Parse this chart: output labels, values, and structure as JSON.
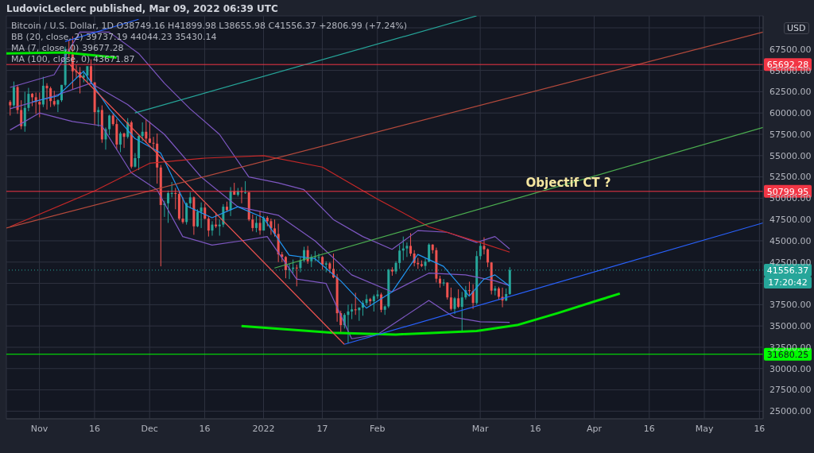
{
  "chart_data": {
    "type": "candlestick",
    "title": "LudovicLeclerc published, Mar 09, 2022 06:39 UTC",
    "subtitle": "Bitcoin / U.S. Dollar, 1D  O38749.16  H41899.98  L38655.98  C41556.37  +2806.99 (+7.24%)",
    "ylabel": "USD",
    "x": [
      "2021-10-24",
      "2021-10-25",
      "2021-10-26",
      "2021-10-27",
      "2021-10-28",
      "2021-10-29",
      "2021-10-30",
      "2021-10-31",
      "2021-11-01",
      "2021-11-02",
      "2021-11-03",
      "2021-11-04",
      "2021-11-05",
      "2021-11-06",
      "2021-11-07",
      "2021-11-08",
      "2021-11-09",
      "2021-11-10",
      "2021-11-11",
      "2021-11-12",
      "2021-11-13",
      "2021-11-14",
      "2021-11-15",
      "2021-11-16",
      "2021-11-17",
      "2021-11-18",
      "2021-11-19",
      "2021-11-20",
      "2021-11-21",
      "2021-11-22",
      "2021-11-23",
      "2021-11-24",
      "2021-11-25",
      "2021-11-26",
      "2021-11-27",
      "2021-11-28",
      "2021-11-29",
      "2021-11-30",
      "2021-12-01",
      "2021-12-02",
      "2021-12-03",
      "2021-12-04",
      "2021-12-05",
      "2021-12-06",
      "2021-12-07",
      "2021-12-08",
      "2021-12-09",
      "2021-12-10",
      "2021-12-11",
      "2021-12-12",
      "2021-12-13",
      "2021-12-14",
      "2021-12-15",
      "2021-12-16",
      "2021-12-17",
      "2021-12-18",
      "2021-12-19",
      "2021-12-20",
      "2021-12-21",
      "2021-12-22",
      "2021-12-23",
      "2021-12-24",
      "2021-12-25",
      "2021-12-26",
      "2021-12-27",
      "2021-12-28",
      "2021-12-29",
      "2021-12-30",
      "2021-12-31",
      "2022-01-01",
      "2022-01-02",
      "2022-01-03",
      "2022-01-04",
      "2022-01-05",
      "2022-01-06",
      "2022-01-07",
      "2022-01-08",
      "2022-01-09",
      "2022-01-10",
      "2022-01-11",
      "2022-01-12",
      "2022-01-13",
      "2022-01-14",
      "2022-01-15",
      "2022-01-16",
      "2022-01-17",
      "2022-01-18",
      "2022-01-19",
      "2022-01-20",
      "2022-01-21",
      "2022-01-22",
      "2022-01-23",
      "2022-01-24",
      "2022-01-25",
      "2022-01-26",
      "2022-01-27",
      "2022-01-28",
      "2022-01-29",
      "2022-01-30",
      "2022-01-31",
      "2022-02-01",
      "2022-02-02",
      "2022-02-03",
      "2022-02-04",
      "2022-02-05",
      "2022-02-06",
      "2022-02-07",
      "2022-02-08",
      "2022-02-09",
      "2022-02-10",
      "2022-02-11",
      "2022-02-12",
      "2022-02-13",
      "2022-02-14",
      "2022-02-15",
      "2022-02-16",
      "2022-02-17",
      "2022-02-18",
      "2022-02-19",
      "2022-02-20",
      "2022-02-21",
      "2022-02-22",
      "2022-02-23",
      "2022-02-24",
      "2022-02-25",
      "2022-02-26",
      "2022-02-27",
      "2022-02-28",
      "2022-03-01",
      "2022-03-02",
      "2022-03-03",
      "2022-03-04",
      "2022-03-05",
      "2022-03-06",
      "2022-03-07",
      "2022-03-08",
      "2022-03-09"
    ],
    "ohlc": [
      [
        61300,
        61500,
        59700,
        60900
      ],
      [
        60900,
        63700,
        60700,
        63050
      ],
      [
        63050,
        63300,
        59900,
        60350
      ],
      [
        60350,
        61500,
        58100,
        58450
      ],
      [
        58450,
        62500,
        57800,
        60600
      ],
      [
        60600,
        62950,
        60200,
        62250
      ],
      [
        62250,
        62350,
        60800,
        61850
      ],
      [
        61850,
        62400,
        59900,
        61300
      ],
      [
        61300,
        62400,
        59500,
        61000
      ],
      [
        61000,
        64250,
        60700,
        63200
      ],
      [
        63200,
        63500,
        60400,
        62900
      ],
      [
        62900,
        63100,
        60700,
        61400
      ],
      [
        61400,
        62600,
        60800,
        61000
      ],
      [
        61000,
        61600,
        60100,
        61500
      ],
      [
        61500,
        63300,
        61300,
        63300
      ],
      [
        63300,
        67800,
        63100,
        67500
      ],
      [
        67500,
        68500,
        66400,
        66900
      ],
      [
        66900,
        69000,
        62800,
        64900
      ],
      [
        64900,
        65600,
        64100,
        64800
      ],
      [
        64800,
        65400,
        62300,
        64150
      ],
      [
        64150,
        64900,
        63600,
        64400
      ],
      [
        64400,
        65500,
        63600,
        65500
      ],
      [
        65500,
        66300,
        63400,
        63600
      ],
      [
        63600,
        63600,
        58600,
        60100
      ],
      [
        60100,
        60700,
        58400,
        60350
      ],
      [
        60350,
        60900,
        56500,
        56900
      ],
      [
        56900,
        58300,
        55700,
        58100
      ],
      [
        58100,
        59800,
        57400,
        59700
      ],
      [
        59700,
        60000,
        58500,
        58700
      ],
      [
        58700,
        59300,
        55700,
        56300
      ],
      [
        56300,
        57800,
        55400,
        57600
      ],
      [
        57600,
        57700,
        55900,
        57200
      ],
      [
        57200,
        59400,
        57000,
        58900
      ],
      [
        58900,
        59100,
        53500,
        53700
      ],
      [
        53700,
        55300,
        53600,
        54700
      ],
      [
        54700,
        57400,
        53300,
        57300
      ],
      [
        57300,
        58900,
        56700,
        57800
      ],
      [
        57800,
        59200,
        56500,
        57000
      ],
      [
        57000,
        59000,
        56500,
        56500
      ],
      [
        56500,
        57200,
        55800,
        56400
      ],
      [
        56400,
        57600,
        51700,
        53600
      ],
      [
        53600,
        53900,
        42000,
        49200
      ],
      [
        49200,
        49700,
        47800,
        49400
      ],
      [
        49400,
        50900,
        47100,
        50600
      ],
      [
        50600,
        51900,
        50100,
        50600
      ],
      [
        50600,
        51200,
        48700,
        50500
      ],
      [
        50500,
        50800,
        47400,
        47600
      ],
      [
        47600,
        50100,
        47000,
        47200
      ],
      [
        47200,
        49500,
        46900,
        49400
      ],
      [
        49400,
        50700,
        48800,
        50100
      ],
      [
        50100,
        50200,
        45700,
        46700
      ],
      [
        46700,
        48700,
        46600,
        48400
      ],
      [
        48400,
        49500,
        46500,
        48900
      ],
      [
        48900,
        49400,
        47500,
        47600
      ],
      [
        47600,
        47900,
        45500,
        46200
      ],
      [
        46200,
        47300,
        45600,
        46900
      ],
      [
        46900,
        48300,
        46500,
        46700
      ],
      [
        46700,
        47500,
        45600,
        46900
      ],
      [
        46900,
        49300,
        46600,
        49000
      ],
      [
        49000,
        49600,
        48400,
        48600
      ],
      [
        48600,
        51300,
        47900,
        50800
      ],
      [
        50800,
        51800,
        50400,
        50400
      ],
      [
        50400,
        51200,
        50200,
        50800
      ],
      [
        50800,
        51300,
        49400,
        50700
      ],
      [
        50700,
        52000,
        50500,
        50700
      ],
      [
        50700,
        50700,
        47300,
        47500
      ],
      [
        47500,
        48100,
        46100,
        46500
      ],
      [
        46500,
        47900,
        46000,
        47100
      ],
      [
        47100,
        48500,
        45700,
        46200
      ],
      [
        46200,
        47900,
        46200,
        47700
      ],
      [
        47700,
        47900,
        46700,
        47300
      ],
      [
        47300,
        47600,
        45700,
        46450
      ],
      [
        46450,
        47500,
        45500,
        45800
      ],
      [
        45800,
        47000,
        42500,
        43400
      ],
      [
        43400,
        43700,
        42500,
        43100
      ],
      [
        43100,
        43200,
        40600,
        41550
      ],
      [
        41550,
        42300,
        40500,
        41700
      ],
      [
        41700,
        42800,
        41200,
        41850
      ],
      [
        41850,
        42200,
        39650,
        41800
      ],
      [
        41800,
        43100,
        41300,
        42700
      ],
      [
        42700,
        44300,
        42500,
        43900
      ],
      [
        43900,
        44400,
        42300,
        42600
      ],
      [
        42600,
        43400,
        41900,
        43100
      ],
      [
        43100,
        43800,
        42600,
        43100
      ],
      [
        43100,
        43500,
        42600,
        43100
      ],
      [
        43100,
        43200,
        41600,
        42200
      ],
      [
        42200,
        42600,
        41300,
        42350
      ],
      [
        42350,
        42500,
        41200,
        41700
      ],
      [
        41700,
        43500,
        40600,
        40700
      ],
      [
        40700,
        41100,
        35500,
        36500
      ],
      [
        36500,
        36800,
        34100,
        35100
      ],
      [
        35100,
        36500,
        34700,
        36300
      ],
      [
        36300,
        37500,
        32950,
        36700
      ],
      [
        36700,
        37600,
        35800,
        36950
      ],
      [
        36950,
        38900,
        36300,
        36850
      ],
      [
        36850,
        37200,
        35600,
        37150
      ],
      [
        37150,
        38000,
        36200,
        37700
      ],
      [
        37700,
        38700,
        37400,
        38150
      ],
      [
        38150,
        38300,
        37400,
        37900
      ],
      [
        37900,
        38700,
        36700,
        38500
      ],
      [
        38500,
        39200,
        38200,
        38700
      ],
      [
        38700,
        38900,
        36600,
        36900
      ],
      [
        36900,
        37400,
        36300,
        37300
      ],
      [
        37300,
        41700,
        37100,
        41600
      ],
      [
        41600,
        41900,
        40900,
        41400
      ],
      [
        41400,
        42600,
        41100,
        42400
      ],
      [
        42400,
        44500,
        41700,
        43850
      ],
      [
        43850,
        45500,
        42700,
        44100
      ],
      [
        44100,
        44800,
        43100,
        44400
      ],
      [
        44400,
        45900,
        43200,
        43500
      ],
      [
        43500,
        43900,
        42000,
        42400
      ],
      [
        42400,
        43000,
        41700,
        42250
      ],
      [
        42250,
        42700,
        41900,
        42050
      ],
      [
        42050,
        42900,
        41600,
        42550
      ],
      [
        42550,
        44700,
        42500,
        44550
      ],
      [
        44550,
        44600,
        43500,
        43900
      ],
      [
        43900,
        44200,
        40100,
        40550
      ],
      [
        40550,
        40900,
        39500,
        40000
      ],
      [
        40000,
        40500,
        39700,
        40100
      ],
      [
        40100,
        40100,
        38100,
        38350
      ],
      [
        38350,
        39500,
        36800,
        37000
      ],
      [
        37000,
        38400,
        36400,
        38250
      ],
      [
        38250,
        39300,
        37100,
        37250
      ],
      [
        37250,
        39000,
        34300,
        38350
      ],
      [
        38350,
        39700,
        38100,
        39200
      ],
      [
        39200,
        40200,
        38600,
        39100
      ],
      [
        39100,
        39900,
        37000,
        37700
      ],
      [
        37700,
        43800,
        37500,
        43200
      ],
      [
        43200,
        44900,
        42800,
        44400
      ],
      [
        44400,
        45400,
        43400,
        44000
      ],
      [
        44000,
        44100,
        41900,
        42450
      ],
      [
        42450,
        42500,
        38700,
        39150
      ],
      [
        39150,
        39700,
        38600,
        39400
      ],
      [
        39400,
        39600,
        38100,
        38420
      ],
      [
        38420,
        39500,
        37200,
        37990
      ],
      [
        37990,
        39400,
        37900,
        38749.16
      ],
      [
        38749.16,
        41899.98,
        38655.98,
        41556.37
      ]
    ],
    "series": [
      {
        "type": "line",
        "color": "#7e57c2",
        "x": [
          "2021-10-24",
          "2021-11-05",
          "2021-11-12",
          "2021-11-20",
          "2021-11-28",
          "2021-12-05",
          "2021-12-12",
          "2021-12-20",
          "2021-12-28",
          "2022-01-05",
          "2022-01-12",
          "2022-01-20",
          "2022-01-28",
          "2022-02-05",
          "2022-02-12",
          "2022-02-20",
          "2022-02-28",
          "2022-03-05",
          "2022-03-09"
        ],
        "values": [
          63000,
          64500,
          69500,
          69500,
          67000,
          63500,
          60500,
          57500,
          52500,
          51800,
          51000,
          47500,
          45500,
          44000,
          46200,
          46000,
          44800,
          45500,
          44044.23
        ]
      },
      {
        "type": "line",
        "color": "#7e57c2",
        "x": [
          "2021-10-24",
          "2021-11-05",
          "2021-11-15",
          "2021-11-25",
          "2021-12-05",
          "2021-12-15",
          "2021-12-25",
          "2022-01-05",
          "2022-01-15",
          "2022-01-25",
          "2022-02-05",
          "2022-02-15",
          "2022-02-25",
          "2022-03-05",
          "2022-03-09"
        ],
        "values": [
          60500,
          62000,
          63500,
          61000,
          57500,
          52500,
          49000,
          48000,
          45000,
          41000,
          39000,
          41200,
          41000,
          40300,
          39737.19
        ]
      },
      {
        "type": "line",
        "color": "#7e57c2",
        "x": [
          "2021-10-24",
          "2021-11-01",
          "2021-11-10",
          "2021-11-18",
          "2021-11-26",
          "2021-12-03",
          "2021-12-10",
          "2021-12-18",
          "2021-12-26",
          "2022-01-02",
          "2022-01-10",
          "2022-01-18",
          "2022-01-25",
          "2022-02-01",
          "2022-02-08",
          "2022-02-15",
          "2022-02-22",
          "2022-03-01",
          "2022-03-09"
        ],
        "values": [
          58000,
          60000,
          59000,
          58500,
          53000,
          51000,
          45500,
          44500,
          45000,
          45500,
          40500,
          40000,
          33500,
          34000,
          36000,
          38000,
          36000,
          35500,
          35430.14
        ]
      },
      {
        "type": "line",
        "color": "#2196f3",
        "x": [
          "2021-10-30",
          "2021-11-06",
          "2021-11-13",
          "2021-11-20",
          "2021-11-27",
          "2021-12-04",
          "2021-12-11",
          "2021-12-18",
          "2021-12-25",
          "2022-01-01",
          "2022-01-08",
          "2022-01-15",
          "2022-01-22",
          "2022-01-29",
          "2022-02-05",
          "2022-02-12",
          "2022-02-19",
          "2022-02-26",
          "2022-03-02",
          "2022-03-05",
          "2022-03-09"
        ],
        "values": [
          61300,
          62000,
          64900,
          60500,
          57000,
          55300,
          49100,
          47700,
          49000,
          47700,
          43300,
          42900,
          40300,
          37100,
          39000,
          43400,
          42000,
          38500,
          40500,
          41000,
          39677.28
        ]
      },
      {
        "type": "line",
        "color": "#c62828",
        "x": [
          "2021-10-24",
          "2021-11-16",
          "2021-12-01",
          "2021-12-16",
          "2022-01-01",
          "2022-01-17",
          "2022-02-01",
          "2022-02-15",
          "2022-03-01",
          "2022-03-09"
        ],
        "values": [
          46650,
          50850,
          54100,
          54700,
          55000,
          53650,
          49900,
          46650,
          44800,
          43671.87
        ]
      },
      {
        "type": "line",
        "color": "#00e600",
        "x": [
          "2021-12-26",
          "2022-01-20",
          "2022-02-06",
          "2022-02-28",
          "2022-03-11",
          "2022-03-22",
          "2022-04-02",
          "2022-04-08"
        ],
        "values": [
          35000,
          34200,
          34000,
          34400,
          35100,
          36500,
          38000,
          38800
        ]
      },
      {
        "type": "line",
        "color": "#00e600",
        "x": [
          "2021-10-23",
          "2021-11-08",
          "2021-11-22"
        ],
        "values": [
          67000,
          67100,
          66500
        ]
      },
      {
        "type": "line",
        "color": "#ef5350",
        "x": [
          "2021-11-09",
          "2022-01-23"
        ],
        "values": [
          65800,
          32850
        ]
      },
      {
        "type": "line",
        "color": "#2962ff",
        "x": [
          "2022-01-23",
          "2022-05-17"
        ],
        "values": [
          32850,
          47100
        ]
      },
      {
        "type": "line",
        "color": "#4caf50",
        "x": [
          "2022-01-04",
          "2022-05-17"
        ],
        "values": [
          41800,
          58300
        ]
      },
      {
        "type": "line",
        "color": "#b54a3c",
        "x": [
          "2021-10-23",
          "2022-05-17"
        ],
        "values": [
          46500,
          69500
        ]
      },
      {
        "type": "line",
        "color": "#26a69a",
        "x": [
          "2021-11-27",
          "2022-02-28"
        ],
        "values": [
          60000,
          71400
        ]
      },
      {
        "type": "line",
        "color": "#2962ff",
        "x": [
          "2021-11-08",
          "2021-11-28"
        ],
        "values": [
          68400,
          71000
        ]
      }
    ],
    "ref_lines": [
      {
        "axis": "y",
        "value": 65692.28,
        "label": "65692.28",
        "color": "#f23645",
        "line_style": "solid"
      },
      {
        "axis": "y",
        "value": 50799.95,
        "label": "50799.95",
        "color": "#f23645",
        "line_style": "solid"
      },
      {
        "axis": "y",
        "value": 41556.37,
        "label": "41556.37",
        "color": "#26a69a",
        "line_style": "dotted"
      },
      {
        "axis": "y",
        "value": 31680.25,
        "label": "31680.25",
        "color": "#00ff00",
        "line_style": "solid"
      }
    ],
    "annotations": [
      "BB (20, close, 2)  39737.19  44044.23  35430.14",
      "MA (7, close, 0)  39677.28",
      "MA (100, close, 0)  43671.87",
      {
        "text": "Objectif CT ?",
        "x": "2022-03-25",
        "y": 50799.95
      },
      "17:20:42"
    ],
    "xlim": [
      "2021-10-23",
      "2022-05-17"
    ],
    "xticks": [
      {
        "value": "2021-11-01",
        "label": "Nov"
      },
      {
        "value": "2021-11-16",
        "label": "16"
      },
      {
        "value": "2021-12-01",
        "label": "Dec"
      },
      {
        "value": "2021-12-16",
        "label": "16"
      },
      {
        "value": "2022-01-01",
        "label": "2022"
      },
      {
        "value": "2022-01-17",
        "label": "17"
      },
      {
        "value": "2022-02-01",
        "label": "Feb"
      },
      {
        "value": "2022-03-01",
        "label": "Mar"
      },
      {
        "value": "2022-03-16",
        "label": "16"
      },
      {
        "value": "2022-04-01",
        "label": "Apr"
      },
      {
        "value": "2022-04-16",
        "label": "16"
      },
      {
        "value": "2022-05-01",
        "label": "May"
      },
      {
        "value": "2022-05-16",
        "label": "16"
      }
    ],
    "ylim": [
      24100,
      71400
    ],
    "yticks": [
      {
        "value": 25000,
        "label": "25000.00"
      },
      {
        "value": 27500,
        "label": "27500.00"
      },
      {
        "value": 30000,
        "label": "30000.00"
      },
      {
        "value": 32500,
        "label": "32500.00"
      },
      {
        "value": 35000,
        "label": "35000.00"
      },
      {
        "value": 37500,
        "label": "37500.00"
      },
      {
        "value": 40000,
        "label": null
      },
      {
        "value": 42500,
        "label": "42500.00"
      },
      {
        "value": 45000,
        "label": "45000.00"
      },
      {
        "value": 47500,
        "label": "47500.00"
      },
      {
        "value": 50000,
        "label": "50000.00"
      },
      {
        "value": 52500,
        "label": "52500.00"
      },
      {
        "value": 55000,
        "label": "55000.00"
      },
      {
        "value": 57500,
        "label": "57500.00"
      },
      {
        "value": 60000,
        "label": "60000.00"
      },
      {
        "value": 62500,
        "label": "62500.00"
      },
      {
        "value": 65000,
        "label": "65000.00"
      },
      {
        "value": 67500,
        "label": "67500.00"
      },
      {
        "value": 70000,
        "label": null
      }
    ],
    "grid": true
  }
}
